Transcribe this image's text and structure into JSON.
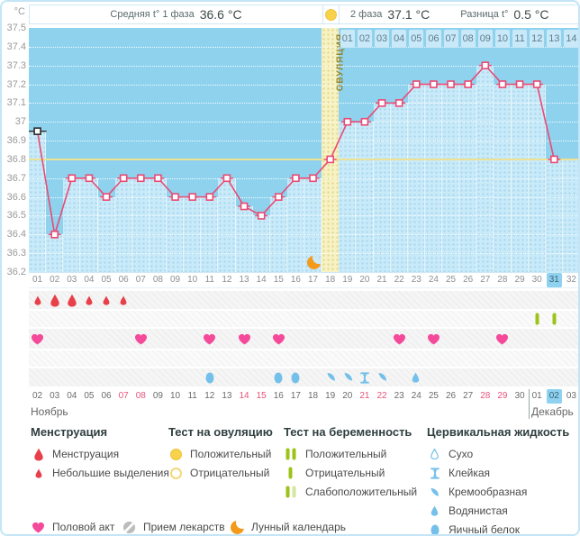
{
  "header": {
    "unit": "°C",
    "phase1_label": "Средняя t° 1 фаза",
    "phase1_value": "36.6 °C",
    "phase2_label": "2 фаза",
    "phase2_value": "37.1 °C",
    "diff_label": "Разница t°",
    "diff_value": "0.5 °C"
  },
  "chart_data": {
    "type": "line",
    "title": "Basal body temperature cycle chart",
    "ylabel": "°C",
    "ylim": [
      36.2,
      37.5
    ],
    "ytick_step": 0.1,
    "grid": true,
    "ovulation_day": 18,
    "ovulation_label": "ОВУЛЯЦИЯ",
    "coverline_temp": 36.8,
    "moon_day": 17,
    "today_cycle_day": 31,
    "cycle_days": [
      1,
      2,
      3,
      4,
      5,
      6,
      7,
      8,
      9,
      10,
      11,
      12,
      13,
      14,
      15,
      16,
      17,
      18,
      19,
      20,
      21,
      22,
      23,
      24,
      25,
      26,
      27,
      28,
      29,
      30,
      31
    ],
    "temps": [
      36.95,
      36.4,
      36.7,
      36.7,
      36.6,
      36.7,
      36.7,
      36.7,
      36.6,
      36.6,
      36.6,
      36.7,
      36.55,
      36.5,
      36.6,
      36.7,
      36.7,
      36.8,
      37,
      37,
      37.1,
      37.1,
      37.2,
      37.2,
      37.2,
      37.2,
      37.3,
      37.2,
      37.2,
      37.2,
      36.8
    ],
    "future_fill_level": 36.8,
    "dpo_labels": [
      "01",
      "02",
      "03",
      "04",
      "05",
      "06",
      "07",
      "08",
      "09",
      "10",
      "11",
      "12",
      "13",
      "14"
    ]
  },
  "axis": {
    "day_labels": [
      "01",
      "02",
      "03",
      "04",
      "05",
      "06",
      "07",
      "08",
      "09",
      "10",
      "11",
      "12",
      "13",
      "14",
      "15",
      "16",
      "17",
      "18",
      "19",
      "20",
      "21",
      "22",
      "23",
      "24",
      "25",
      "26",
      "27",
      "28",
      "29",
      "30",
      "31",
      "32"
    ],
    "dates": [
      "02",
      "03",
      "04",
      "05",
      "06",
      "07",
      "08",
      "09",
      "10",
      "11",
      "12",
      "13",
      "14",
      "15",
      "16",
      "17",
      "18",
      "19",
      "20",
      "21",
      "22",
      "23",
      "24",
      "25",
      "26",
      "27",
      "28",
      "29",
      "30",
      "01",
      "02",
      "03"
    ],
    "weekend_indices": [
      5,
      6,
      12,
      13,
      19,
      20,
      26,
      27
    ],
    "highlight_index": 30,
    "month_left": "Ноябрь",
    "month_right": "Декабрь",
    "december_start_index": 29
  },
  "events": {
    "menstruation": [
      {
        "day": 1,
        "size": "small"
      },
      {
        "day": 2,
        "size": "large"
      },
      {
        "day": 3,
        "size": "large"
      },
      {
        "day": 4,
        "size": "small"
      },
      {
        "day": 5,
        "size": "small"
      },
      {
        "day": 6,
        "size": "small"
      }
    ],
    "pregnancy_tests": [
      {
        "day": 30,
        "result": "Отрицательный"
      },
      {
        "day": 31,
        "result": "Отрицательный"
      }
    ],
    "intercourse_days": [
      1,
      7,
      11,
      13,
      15,
      22,
      24,
      28
    ],
    "cervical": [
      {
        "day": 11,
        "type": "Яичный белок"
      },
      {
        "day": 15,
        "type": "Яичный белок"
      },
      {
        "day": 16,
        "type": "Яичный белок"
      },
      {
        "day": 18,
        "type": "Кремообразная"
      },
      {
        "day": 19,
        "type": "Кремообразная"
      },
      {
        "day": 20,
        "type": "Клейкая"
      },
      {
        "day": 21,
        "type": "Кремообразная"
      },
      {
        "day": 23,
        "type": "Водянистая"
      }
    ],
    "medication": []
  },
  "legend": {
    "sections": [
      {
        "title": "Менструация",
        "items": [
          {
            "icon": "drop-large",
            "label": "Менструация"
          },
          {
            "icon": "drop-small",
            "label": "Небольшие выделения"
          }
        ]
      },
      {
        "title": "Тест на овуляцию",
        "items": [
          {
            "icon": "ovul-pos",
            "label": "Положительный"
          },
          {
            "icon": "ovul-neg",
            "label": "Отрицательный"
          }
        ]
      },
      {
        "title": "Тест на беременность",
        "items": [
          {
            "icon": "preg-pos",
            "label": "Положительный"
          },
          {
            "icon": "preg-neg",
            "label": "Отрицательный"
          },
          {
            "icon": "preg-weak",
            "label": "Слабоположительный"
          }
        ]
      },
      {
        "title": "Цервикальная жидкость",
        "items": [
          {
            "icon": "dry",
            "label": "Сухо"
          },
          {
            "icon": "sticky",
            "label": "Клейкая"
          },
          {
            "icon": "creamy",
            "label": "Кремообразная"
          },
          {
            "icon": "watery",
            "label": "Водянистая"
          },
          {
            "icon": "eggwhite",
            "label": "Яичный белок"
          }
        ]
      }
    ],
    "bottom": [
      {
        "icon": "heart",
        "label": "Половой акт"
      },
      {
        "icon": "pill",
        "label": "Прием лекарств"
      },
      {
        "icon": "moon",
        "label": "Лунный календарь"
      }
    ]
  },
  "colors": {
    "line": "#e94a74",
    "chart_bg": "#8fd2ee",
    "column_fill": "#c8eaf9",
    "ovulation_column": "#f7f2c2",
    "coverline": "#ece293",
    "highlight": "#8ed2f0",
    "menstruation": "#e8404a",
    "heart": "#f5499a",
    "cervical": "#74c0ea",
    "pregnancy_bar": "#9cc318",
    "pregnancy_bar_pale": "#d6e6a0",
    "ovulation_test": "#f8d24a",
    "moon": "#f49a1b",
    "weekend": "#e8537a",
    "first_point": "#2a2a2a"
  }
}
